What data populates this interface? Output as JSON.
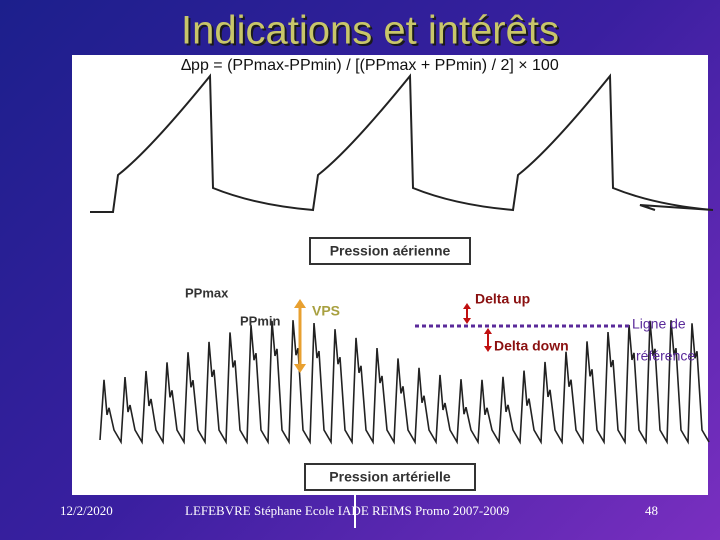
{
  "title": "Indications et intérêts",
  "formula": "∆pp = (PPmax-PPmin) / [(PPmax + PPmin) / 2] × 100",
  "figure": {
    "airway_label": "Pression aérienne",
    "arterial_label": "Pression artérielle",
    "ppmax": "PPmax",
    "ppmin": "PPmin",
    "vps": "VPS",
    "delta_up": "Delta up",
    "delta_down": "Delta down",
    "reference_line_1": "Ligne de",
    "reference_line_2": "référence"
  },
  "footer": {
    "date": "12/2/2020",
    "author": "LEFEBVRE Stéphane Ecole IADE REIMS Promo 2007-2009",
    "page": "48"
  }
}
